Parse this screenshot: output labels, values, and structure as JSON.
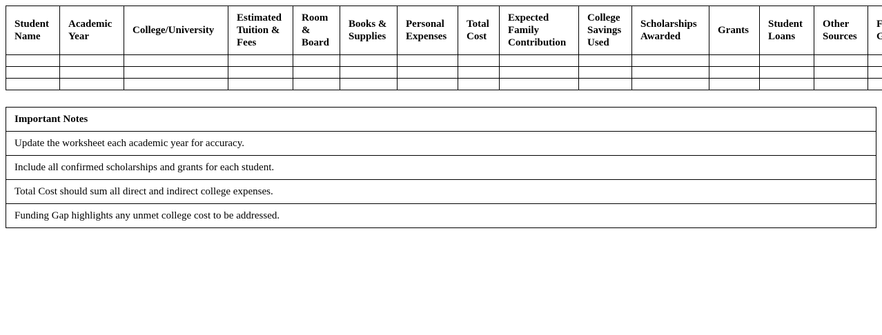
{
  "worksheet": {
    "headers": [
      "Student Name",
      "Academic Year",
      "College/University",
      "Estimated Tuition & Fees",
      "Room & Board",
      "Books & Supplies",
      "Personal Expenses",
      "Total Cost",
      "Expected Family Contribution",
      "College Savings Used",
      "Scholarships Awarded",
      "Grants",
      "Student Loans",
      "Other Sources",
      "Funding Gap"
    ],
    "empty_rows": 3
  },
  "notes": {
    "title": "Important Notes",
    "items": [
      "Update the worksheet each academic year for accuracy.",
      "Include all confirmed scholarships and grants for each student.",
      "Total Cost should sum all direct and indirect college expenses.",
      "Funding Gap highlights any unmet college cost to be addressed."
    ]
  }
}
